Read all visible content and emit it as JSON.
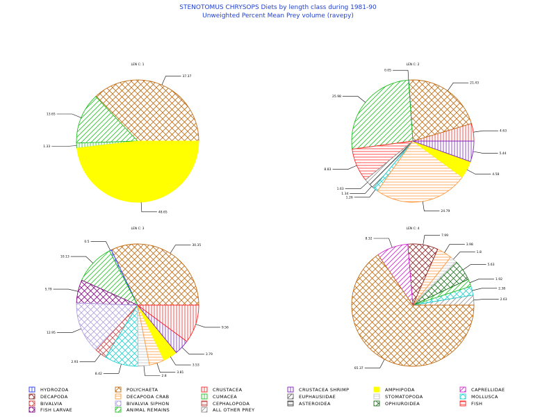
{
  "title": "STENOTOMUS CHRYSOPS Diets by length class during 1981-90",
  "subtitle": "Unweighted Percent Mean Prey volume (ravepy)",
  "legend": [
    {
      "name": "HYDROZOA",
      "color": "#2030ff",
      "pattern": "vert"
    },
    {
      "name": "POLYCHAETA",
      "color": "#c06a10",
      "pattern": "cross"
    },
    {
      "name": "CRUSTACEA",
      "color": "#ff2020",
      "pattern": "vert"
    },
    {
      "name": "CRUSTACEA SHRIMP",
      "color": "#8020c0",
      "pattern": "vert"
    },
    {
      "name": "AMPHIPODA",
      "color": "#ffff00",
      "pattern": "solid"
    },
    {
      "name": "CAPRELLIDAE",
      "color": "#d020d0",
      "pattern": "diag"
    },
    {
      "name": "DECAPODA",
      "color": "#8a2020",
      "pattern": "cross"
    },
    {
      "name": "DECAPODA CRAB",
      "color": "#ff9a40",
      "pattern": "horiz"
    },
    {
      "name": "CUMACEA",
      "color": "#20c020",
      "pattern": "vert"
    },
    {
      "name": "EUPHAUSIIDAE",
      "color": "#606060",
      "pattern": "diag"
    },
    {
      "name": "STOMATOPODA",
      "color": "#c0c0c0",
      "pattern": "horiz"
    },
    {
      "name": "MOLLUSCA",
      "color": "#20d0d0",
      "pattern": "cross"
    },
    {
      "name": "BIVALVIA",
      "color": "#d04040",
      "pattern": "cross"
    },
    {
      "name": "BIVALVIA SIPHON",
      "color": "#b0a0e0",
      "pattern": "cross"
    },
    {
      "name": "CEPHALOPODA",
      "color": "#c04040",
      "pattern": "horiz"
    },
    {
      "name": "ASTEROIDEA",
      "color": "#404040",
      "pattern": "horiz"
    },
    {
      "name": "OPHIUROIDEA",
      "color": "#207020",
      "pattern": "cross"
    },
    {
      "name": "FISH",
      "color": "#ff2020",
      "pattern": "horiz"
    },
    {
      "name": "FISH LARVAE",
      "color": "#800080",
      "pattern": "cross"
    },
    {
      "name": "ANIMAL REMAINS",
      "color": "#20c020",
      "pattern": "diag"
    },
    {
      "name": "ALL OTHER PREY",
      "color": "#909090",
      "pattern": "diag"
    }
  ],
  "chart_data": [
    {
      "type": "pie",
      "title": "LEN C: 1",
      "slices": [
        {
          "category": "POLYCHAETA",
          "value": 37.37,
          "label": "37.37"
        },
        {
          "category": "ANIMAL REMAINS",
          "value": 13.65,
          "label": "13.65"
        },
        {
          "category": "CUMACEA",
          "value": 1.33,
          "label": "1.33"
        },
        {
          "category": "AMPHIPODA",
          "value": 48.65,
          "label": "48.65"
        }
      ]
    },
    {
      "type": "pie",
      "title": "LEN C: 2",
      "slices": [
        {
          "category": "CRUSTACEA",
          "value": 4.63,
          "label": "4.63"
        },
        {
          "category": "POLYCHAETA",
          "value": 21.43,
          "label": "21.43"
        },
        {
          "category": "HYDROZOA",
          "value": 0.05,
          "label": "0.05"
        },
        {
          "category": "ANIMAL REMAINS",
          "value": 25.98,
          "label": "25.98"
        },
        {
          "category": "FISH",
          "value": 8.83,
          "label": "8.83"
        },
        {
          "category": "ALL OTHER PREY",
          "value": 1.63,
          "label": "1.63"
        },
        {
          "category": "EUPHAUSIIDAE",
          "value": 1.34,
          "label": "1.34"
        },
        {
          "category": "MOLLUSCA",
          "value": 1.26,
          "label": "1.26"
        },
        {
          "category": "DECAPODA CRAB",
          "value": 24.79,
          "label": "24.79"
        },
        {
          "category": "AMPHIPODA",
          "value": 4.58,
          "label": "4.58"
        },
        {
          "category": "CRUSTACEA SHRIMP",
          "value": 5.44,
          "label": "5.44"
        }
      ]
    },
    {
      "type": "pie",
      "title": "LEN C: 3",
      "slices": [
        {
          "category": "POLYCHAETA",
          "value": 30.35,
          "label": "30.35"
        },
        {
          "category": "HYDROZOA",
          "value": 0.5,
          "label": "0.5"
        },
        {
          "category": "ANIMAL REMAINS",
          "value": 10.13,
          "label": "10.13"
        },
        {
          "category": "FISH LARVAE",
          "value": 5.79,
          "label": "5.79"
        },
        {
          "category": "BIVALVIA SIPHON",
          "value": 12.95,
          "label": "12.95"
        },
        {
          "category": "BIVALVIA",
          "value": 2.93,
          "label": "2.93"
        },
        {
          "category": "MOLLUSCA",
          "value": 8.42,
          "label": "8.42"
        },
        {
          "category": "STOMATOPODA",
          "value": 2.8,
          "label": "2.8"
        },
        {
          "category": "DECAPODA CRAB",
          "value": 3.81,
          "label": "3.81"
        },
        {
          "category": "AMPHIPODA",
          "value": 3.53,
          "label": "3.53"
        },
        {
          "category": "CRUSTACEA SHRIMP",
          "value": 3.79,
          "label": "3.79"
        },
        {
          "category": "CRUSTACEA",
          "value": 9.56,
          "label": "9.56"
        }
      ]
    },
    {
      "type": "pie",
      "title": "LEN C: 4",
      "slices": [
        {
          "category": "ALL OTHER PREY",
          "value": 2.63,
          "label": "2.63"
        },
        {
          "category": "MOLLUSCA",
          "value": 2.38,
          "label": "2.38"
        },
        {
          "category": "ANIMAL REMAINS",
          "value": 1.92,
          "label": "1.92"
        },
        {
          "category": "OPHIUROIDEA",
          "value": 5.63,
          "label": "5.63"
        },
        {
          "category": "STOMATOPODA",
          "value": 1.8,
          "label": "1.8"
        },
        {
          "category": "DECAPODA CRAB",
          "value": 3.98,
          "label": "3.98"
        },
        {
          "category": "DECAPODA",
          "value": 7.99,
          "label": "7.99"
        },
        {
          "category": "CAPRELLIDAE",
          "value": 8.32,
          "label": "8.32"
        },
        {
          "category": "POLYCHAETA",
          "value": 65.37,
          "label": "65.37"
        }
      ]
    }
  ]
}
